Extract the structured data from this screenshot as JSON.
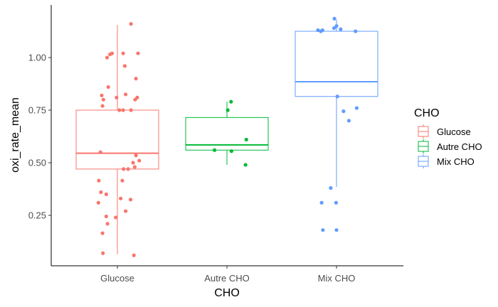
{
  "chart_data": {
    "type": "boxplot",
    "xlabel": "CHO",
    "ylabel": "oxi_rate_mean",
    "categories": [
      "Glucose",
      "Autre CHO",
      "Mix CHO"
    ],
    "colors": {
      "Glucose": "#F8766D",
      "Autre CHO": "#00BA38",
      "Mix CHO": "#619CFF"
    },
    "ylim": [
      0.02,
      1.225
    ],
    "yticks": [
      0.25,
      0.5,
      0.75,
      1.0
    ],
    "yticklabels": [
      "0.25",
      "0.50",
      "0.75",
      "1.00"
    ],
    "grid": false,
    "legend": {
      "title": "CHO",
      "position": "right",
      "entries": [
        "Glucose",
        "Autre CHO",
        "Mix CHO"
      ]
    },
    "boxes": [
      {
        "category": "Glucose",
        "min": 0.065,
        "q1": 0.47,
        "median": 0.545,
        "q3": 0.75,
        "max": 1.155
      },
      {
        "category": "Autre CHO",
        "min": 0.49,
        "q1": 0.56,
        "median": 0.585,
        "q3": 0.715,
        "max": 0.79
      },
      {
        "category": "Mix CHO",
        "min": 0.385,
        "q1": 0.815,
        "median": 0.885,
        "q3": 1.125,
        "max": 1.18
      }
    ],
    "points": [
      {
        "category": "Glucose",
        "offset": 0.33,
        "y": 1.16
      },
      {
        "category": "Glucose",
        "offset": -0.25,
        "y": 1.0
      },
      {
        "category": "Glucose",
        "offset": -0.18,
        "y": 1.015
      },
      {
        "category": "Glucose",
        "offset": -0.13,
        "y": 1.02
      },
      {
        "category": "Glucose",
        "offset": 0.14,
        "y": 1.02
      },
      {
        "category": "Glucose",
        "offset": 0.5,
        "y": 1.02
      },
      {
        "category": "Glucose",
        "offset": 0.18,
        "y": 0.96
      },
      {
        "category": "Glucose",
        "offset": 0.45,
        "y": 0.9
      },
      {
        "category": "Glucose",
        "offset": -0.22,
        "y": 0.86
      },
      {
        "category": "Glucose",
        "offset": -0.38,
        "y": 0.82
      },
      {
        "category": "Glucose",
        "offset": 0.2,
        "y": 0.825
      },
      {
        "category": "Glucose",
        "offset": -0.34,
        "y": 0.8
      },
      {
        "category": "Glucose",
        "offset": -0.02,
        "y": 0.81
      },
      {
        "category": "Glucose",
        "offset": 0.48,
        "y": 0.81
      },
      {
        "category": "Glucose",
        "offset": 0.43,
        "y": 0.8
      },
      {
        "category": "Glucose",
        "offset": -0.36,
        "y": 0.77
      },
      {
        "category": "Glucose",
        "offset": 0.14,
        "y": 0.75
      },
      {
        "category": "Glucose",
        "offset": 0.33,
        "y": 0.75
      },
      {
        "category": "Glucose",
        "offset": 0.05,
        "y": 0.75
      },
      {
        "category": "Glucose",
        "offset": -0.41,
        "y": 0.55
      },
      {
        "category": "Glucose",
        "offset": 0.45,
        "y": 0.535
      },
      {
        "category": "Glucose",
        "offset": 0.53,
        "y": 0.51
      },
      {
        "category": "Glucose",
        "offset": 0.38,
        "y": 0.5
      },
      {
        "category": "Glucose",
        "offset": 0.42,
        "y": 0.48
      },
      {
        "category": "Glucose",
        "offset": 0.26,
        "y": 0.47
      },
      {
        "category": "Glucose",
        "offset": 0.15,
        "y": 0.47
      },
      {
        "category": "Glucose",
        "offset": -0.45,
        "y": 0.415
      },
      {
        "category": "Glucose",
        "offset": 0.12,
        "y": 0.415
      },
      {
        "category": "Glucose",
        "offset": -0.4,
        "y": 0.36
      },
      {
        "category": "Glucose",
        "offset": -0.27,
        "y": 0.35
      },
      {
        "category": "Glucose",
        "offset": 0.08,
        "y": 0.33
      },
      {
        "category": "Glucose",
        "offset": 0.32,
        "y": 0.325
      },
      {
        "category": "Glucose",
        "offset": -0.46,
        "y": 0.31
      },
      {
        "category": "Glucose",
        "offset": 0.2,
        "y": 0.27
      },
      {
        "category": "Glucose",
        "offset": -0.27,
        "y": 0.245
      },
      {
        "category": "Glucose",
        "offset": -0.04,
        "y": 0.24
      },
      {
        "category": "Glucose",
        "offset": -0.24,
        "y": 0.21
      },
      {
        "category": "Glucose",
        "offset": -0.36,
        "y": 0.165
      },
      {
        "category": "Glucose",
        "offset": -0.35,
        "y": 0.07
      },
      {
        "category": "Glucose",
        "offset": 0.4,
        "y": 0.06
      },
      {
        "category": "Autre CHO",
        "offset": 0.1,
        "y": 0.79
      },
      {
        "category": "Autre CHO",
        "offset": 0.02,
        "y": 0.75
      },
      {
        "category": "Autre CHO",
        "offset": 0.47,
        "y": 0.61
      },
      {
        "category": "Autre CHO",
        "offset": -0.3,
        "y": 0.56
      },
      {
        "category": "Autre CHO",
        "offset": 0.11,
        "y": 0.555
      },
      {
        "category": "Autre CHO",
        "offset": 0.45,
        "y": 0.49
      },
      {
        "category": "Mix CHO",
        "offset": -0.05,
        "y": 1.185
      },
      {
        "category": "Mix CHO",
        "offset": -0.06,
        "y": 1.14
      },
      {
        "category": "Mix CHO",
        "offset": 0.0,
        "y": 1.15
      },
      {
        "category": "Mix CHO",
        "offset": 0.1,
        "y": 1.135
      },
      {
        "category": "Mix CHO",
        "offset": -0.45,
        "y": 1.13
      },
      {
        "category": "Mix CHO",
        "offset": -0.34,
        "y": 1.13
      },
      {
        "category": "Mix CHO",
        "offset": -0.38,
        "y": 1.125
      },
      {
        "category": "Mix CHO",
        "offset": 0.46,
        "y": 1.125
      },
      {
        "category": "Mix CHO",
        "offset": 0.02,
        "y": 0.815
      },
      {
        "category": "Mix CHO",
        "offset": 0.49,
        "y": 0.76
      },
      {
        "category": "Mix CHO",
        "offset": 0.17,
        "y": 0.745
      },
      {
        "category": "Mix CHO",
        "offset": 0.3,
        "y": 0.7
      },
      {
        "category": "Mix CHO",
        "offset": -0.14,
        "y": 0.38
      },
      {
        "category": "Mix CHO",
        "offset": -0.36,
        "y": 0.31
      },
      {
        "category": "Mix CHO",
        "offset": -0.01,
        "y": 0.31
      },
      {
        "category": "Mix CHO",
        "offset": -0.33,
        "y": 0.18
      },
      {
        "category": "Mix CHO",
        "offset": 0.0,
        "y": 0.18
      }
    ]
  }
}
